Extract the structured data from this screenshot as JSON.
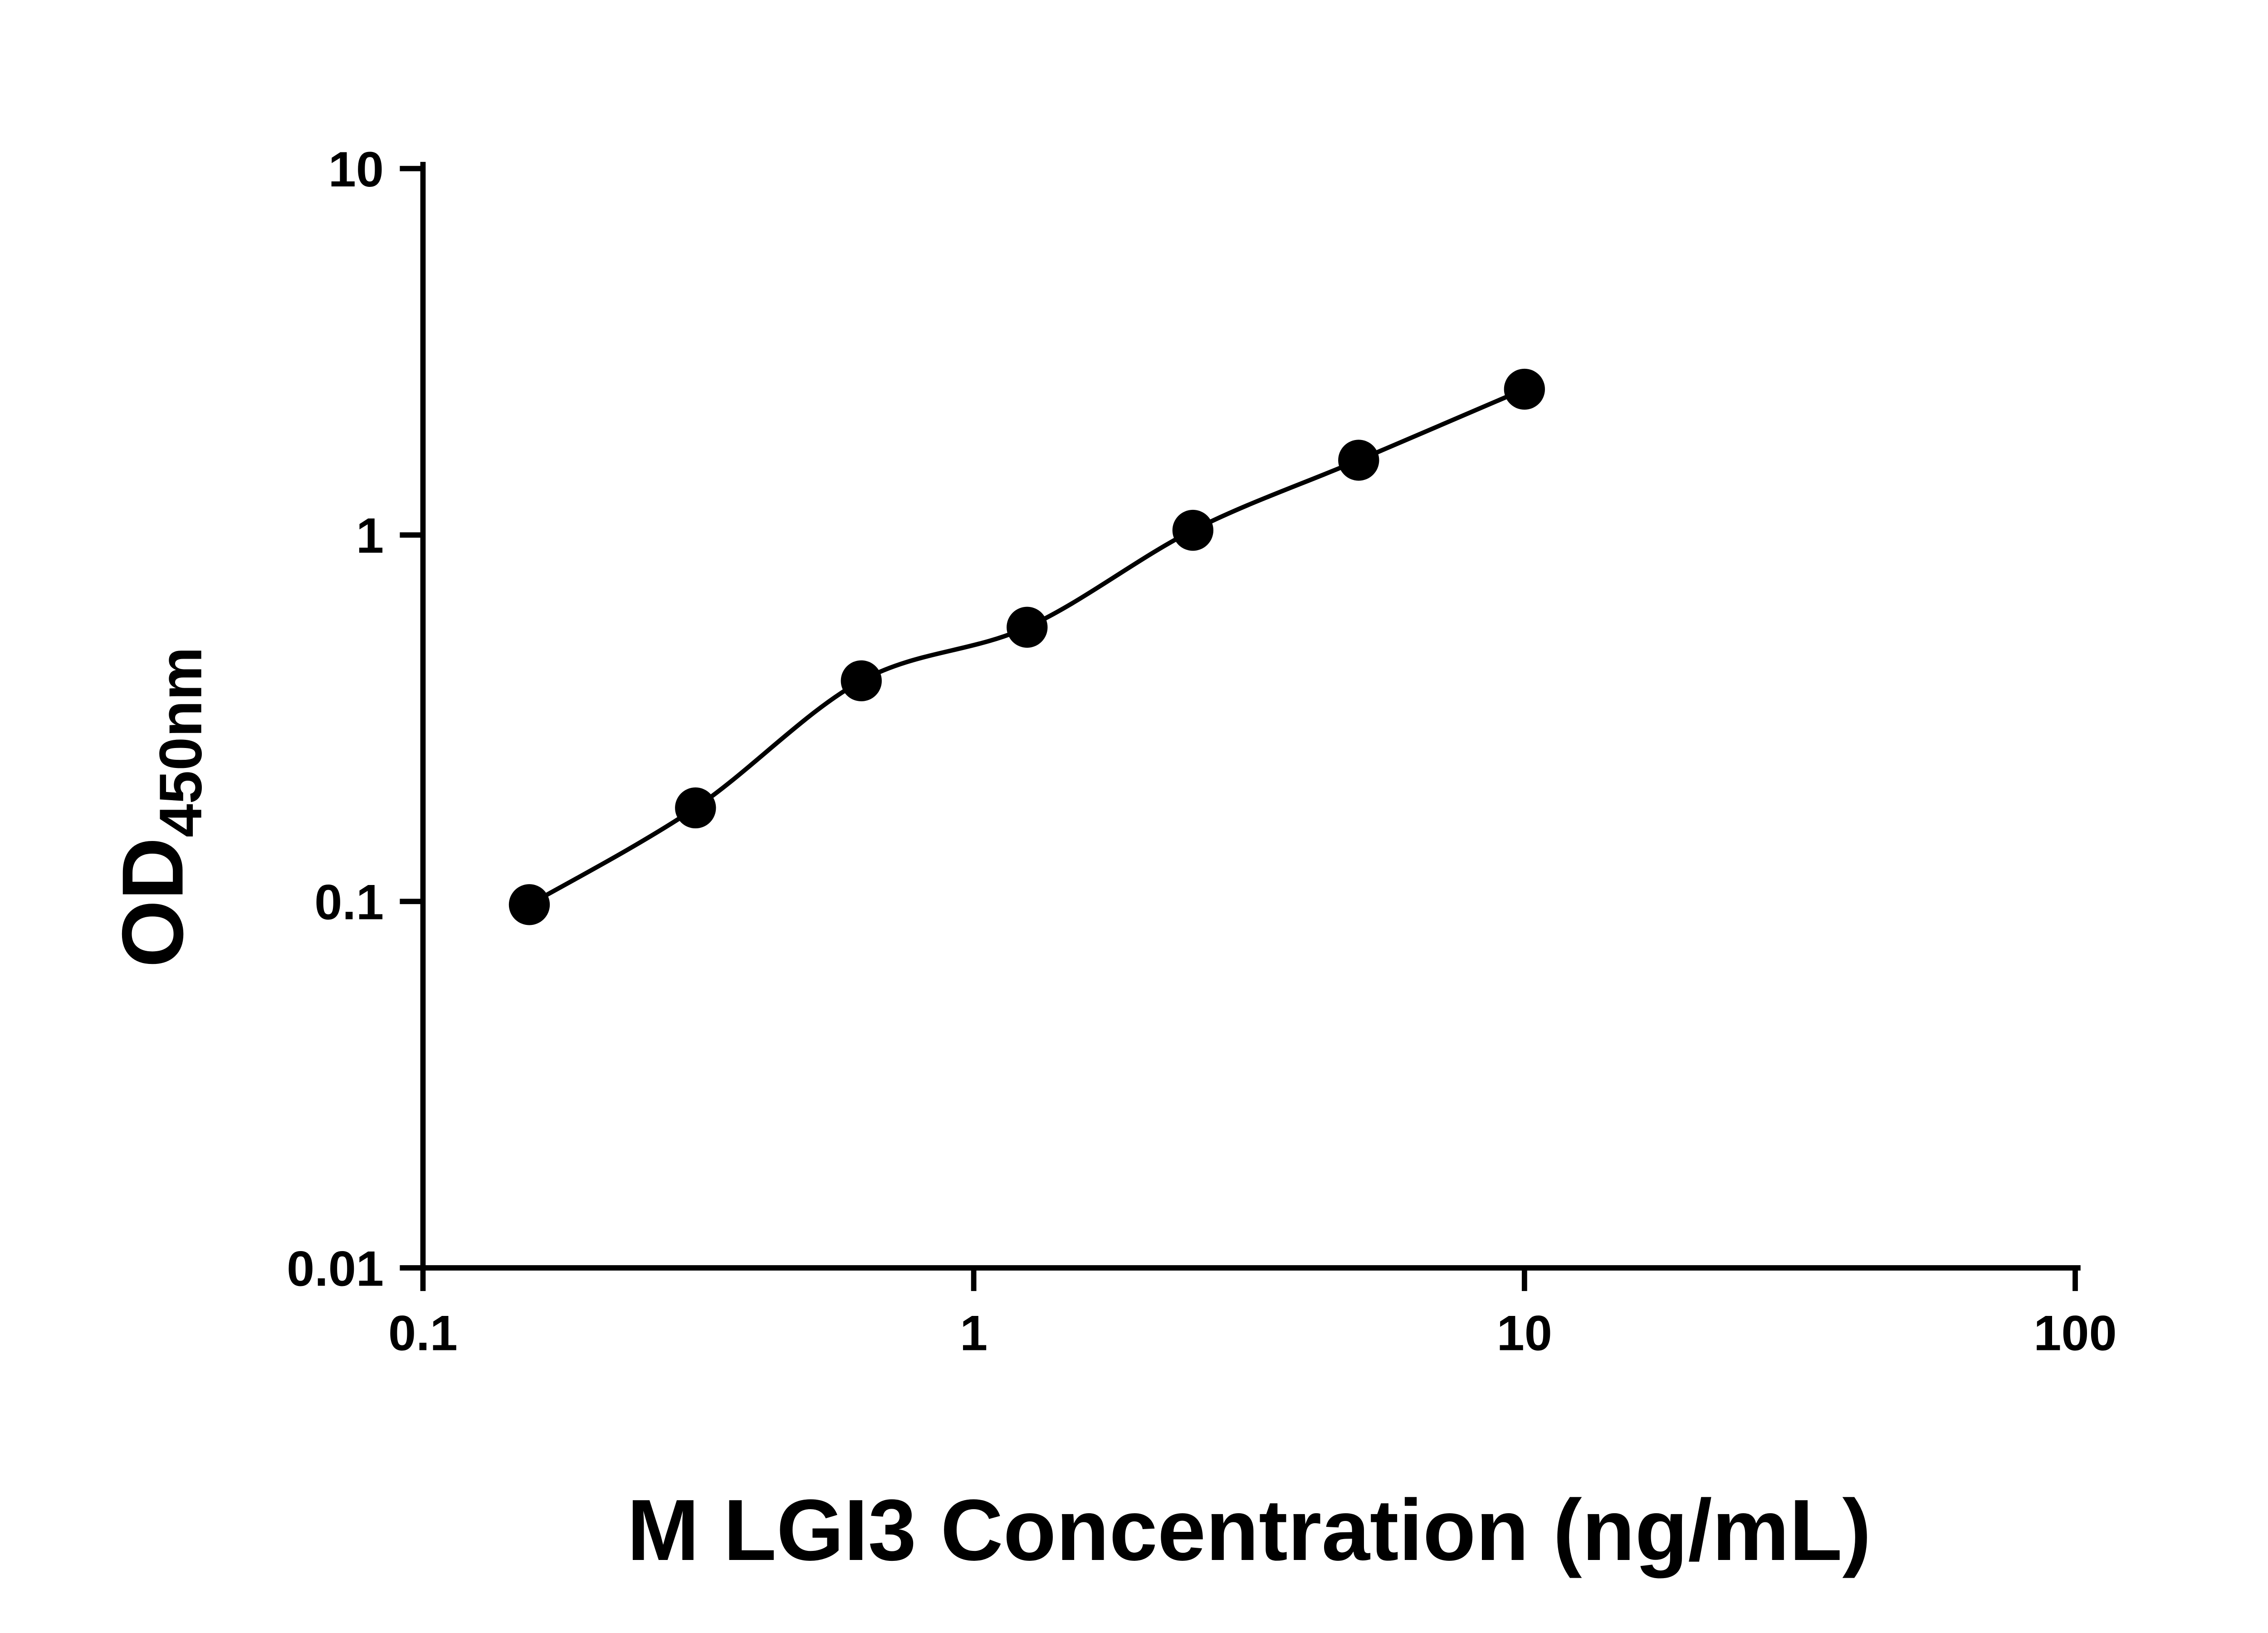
{
  "colors": {
    "foreground": "#000000",
    "background": "#ffffff"
  },
  "chart_data": {
    "type": "scatter",
    "title": "",
    "xlabel": "M LGI3 Concentration (ng/mL)",
    "ylabel": "OD",
    "ylabel_subscript": "450nm",
    "x_scale": "log10",
    "y_scale": "log10",
    "xlim": [
      0.1,
      100
    ],
    "ylim": [
      0.01,
      10
    ],
    "grid": false,
    "legend": "none",
    "x_ticks": [
      {
        "value": 0.1,
        "label": "0.1"
      },
      {
        "value": 1,
        "label": "1"
      },
      {
        "value": 10,
        "label": "10"
      },
      {
        "value": 100,
        "label": "100"
      }
    ],
    "y_ticks": [
      {
        "value": 0.01,
        "label": "0.01"
      },
      {
        "value": 0.1,
        "label": "0.1"
      },
      {
        "value": 1,
        "label": "1"
      },
      {
        "value": 10,
        "label": "10"
      }
    ],
    "series": [
      {
        "marker": "filled-circle",
        "marker_color": "#000000",
        "line": "smooth-fit",
        "line_color": "#000000",
        "points": [
          {
            "x": 0.156,
            "y": 0.098
          },
          {
            "x": 0.3125,
            "y": 0.18
          },
          {
            "x": 0.625,
            "y": 0.4
          },
          {
            "x": 1.25,
            "y": 0.56
          },
          {
            "x": 2.5,
            "y": 1.03
          },
          {
            "x": 5,
            "y": 1.6
          },
          {
            "x": 10,
            "y": 2.5
          }
        ]
      }
    ]
  }
}
